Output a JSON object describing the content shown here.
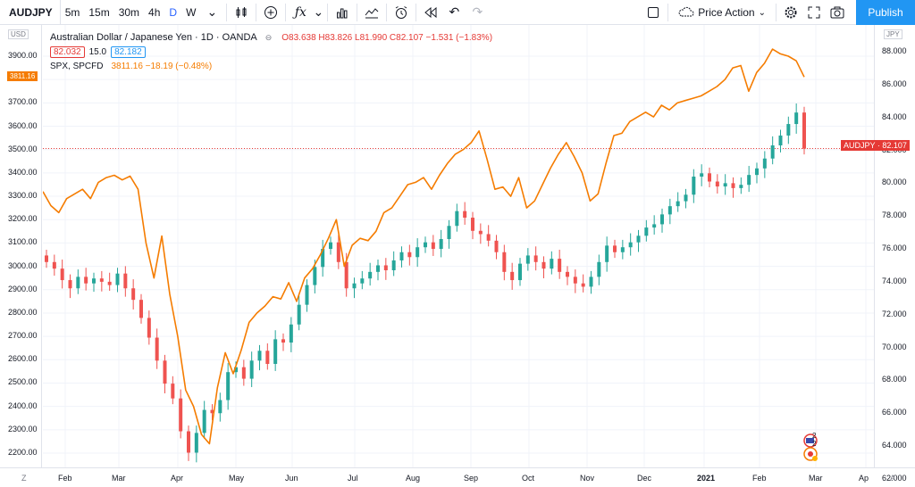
{
  "toolbar": {
    "symbol": "AUDJPY",
    "intervals": [
      "5m",
      "15m",
      "30m",
      "4h",
      "D",
      "W"
    ],
    "active_interval": "D",
    "template": "Price Action",
    "publish_label": "Publish"
  },
  "legend": {
    "title": "Australian Dollar / Japanese Yen · 1D · OANDA",
    "ohlc": "O83.638  H83.826  L81.990  C82.107  −1.531 (−1.83%)",
    "bid": "82.032",
    "spread": "15.0",
    "ask": "82.182",
    "overlay_name": "SPX, SPCFD",
    "overlay_values": "3811.16  −18.19 (−0.48%)"
  },
  "left_axis": {
    "unit": "USD",
    "ticks": [
      "3900.00",
      "3800.00",
      "3700.00",
      "3600.00",
      "3500.00",
      "3400.00",
      "3300.00",
      "3200.00",
      "3100.00",
      "3000.00",
      "2900.00",
      "2800.00",
      "2700.00",
      "2600.00",
      "2500.00",
      "2400.00",
      "2300.00",
      "2200.00"
    ],
    "last_price_tag": "3811.16"
  },
  "right_axis": {
    "unit": "JPY",
    "ticks": [
      "88.000",
      "86.000",
      "84.000",
      "82.000",
      "80.000",
      "78.000",
      "76.000",
      "74.000",
      "72.000",
      "70.000",
      "68.000",
      "66.000",
      "64.000",
      "62.000"
    ],
    "last_price_tag": "AUDJPY · 82.107"
  },
  "time_axis": {
    "labels": [
      "Feb",
      "Mar",
      "Apr",
      "May",
      "Jun",
      "Jul",
      "Aug",
      "Sep",
      "Oct",
      "Nov",
      "Dec",
      "2021",
      "Feb",
      "Mar",
      "Ap"
    ],
    "left_corner": "Z",
    "right_corner": "A"
  },
  "events": {
    "count": "2 2"
  },
  "colors": {
    "up": "#26a69a",
    "down": "#ef5350",
    "spx": "#f57c00",
    "accent": "#2962ff"
  },
  "chart_data": [
    {
      "type": "candlestick",
      "series": [
        {
          "name": "AUDJPY",
          "axis": "right",
          "closes": [
            75.2,
            74.8,
            74.1,
            73.6,
            74.3,
            73.9,
            74.2,
            74.0,
            73.8,
            74.5,
            73.6,
            72.9,
            71.8,
            70.6,
            69.2,
            67.8,
            66.9,
            64.9,
            63.6,
            64.8,
            66.2,
            66.0,
            66.8,
            68.5,
            68.8,
            68.1,
            69.2,
            69.8,
            69.0,
            70.5,
            70.3,
            71.4,
            72.6,
            73.8,
            74.9,
            76.0,
            76.4,
            75.2,
            73.6,
            73.9,
            74.2,
            74.6,
            75.0,
            74.7,
            75.3,
            75.8,
            75.5,
            76.1,
            76.4,
            76.0,
            76.6,
            77.4,
            78.3,
            77.9,
            77.1,
            76.9,
            76.5,
            75.8,
            74.6,
            74.1,
            75.1,
            75.6,
            75.2,
            74.8,
            75.4,
            74.6,
            74.3,
            73.9,
            73.7,
            74.3,
            75.2,
            76.2,
            75.8,
            76.1,
            76.4,
            76.8,
            77.3,
            77.5,
            78.1,
            78.6,
            78.9,
            79.3,
            80.4,
            80.6,
            80.1,
            79.8,
            80.0,
            79.7,
            79.9,
            80.5,
            80.9,
            81.5,
            82.3,
            82.9,
            83.6,
            84.3,
            82.1
          ],
          "note": "approximate daily closes read off the candlesticks, Jan 2020 – Feb 2021"
        }
      ]
    },
    {
      "type": "line",
      "series": [
        {
          "name": "SPX, SPCFD",
          "axis": "left",
          "values": [
            3320,
            3260,
            3230,
            3290,
            3310,
            3330,
            3290,
            3360,
            3380,
            3390,
            3370,
            3386,
            3330,
            3100,
            2950,
            3130,
            2880,
            2700,
            2470,
            2400,
            2280,
            2240,
            2480,
            2630,
            2540,
            2640,
            2760,
            2800,
            2830,
            2870,
            2860,
            2930,
            2850,
            2950,
            2990,
            3050,
            3120,
            3200,
            3000,
            3090,
            3120,
            3110,
            3150,
            3230,
            3250,
            3300,
            3350,
            3360,
            3380,
            3330,
            3390,
            3440,
            3480,
            3500,
            3530,
            3580,
            3460,
            3330,
            3340,
            3300,
            3380,
            3250,
            3280,
            3350,
            3420,
            3480,
            3530,
            3470,
            3400,
            3280,
            3310,
            3440,
            3560,
            3570,
            3620,
            3640,
            3660,
            3640,
            3690,
            3670,
            3700,
            3710,
            3720,
            3730,
            3750,
            3770,
            3800,
            3850,
            3860,
            3750,
            3830,
            3870,
            3930,
            3910,
            3900,
            3880,
            3811
          ],
          "note": "approximate daily closes read off the orange overlay line"
        }
      ]
    }
  ]
}
